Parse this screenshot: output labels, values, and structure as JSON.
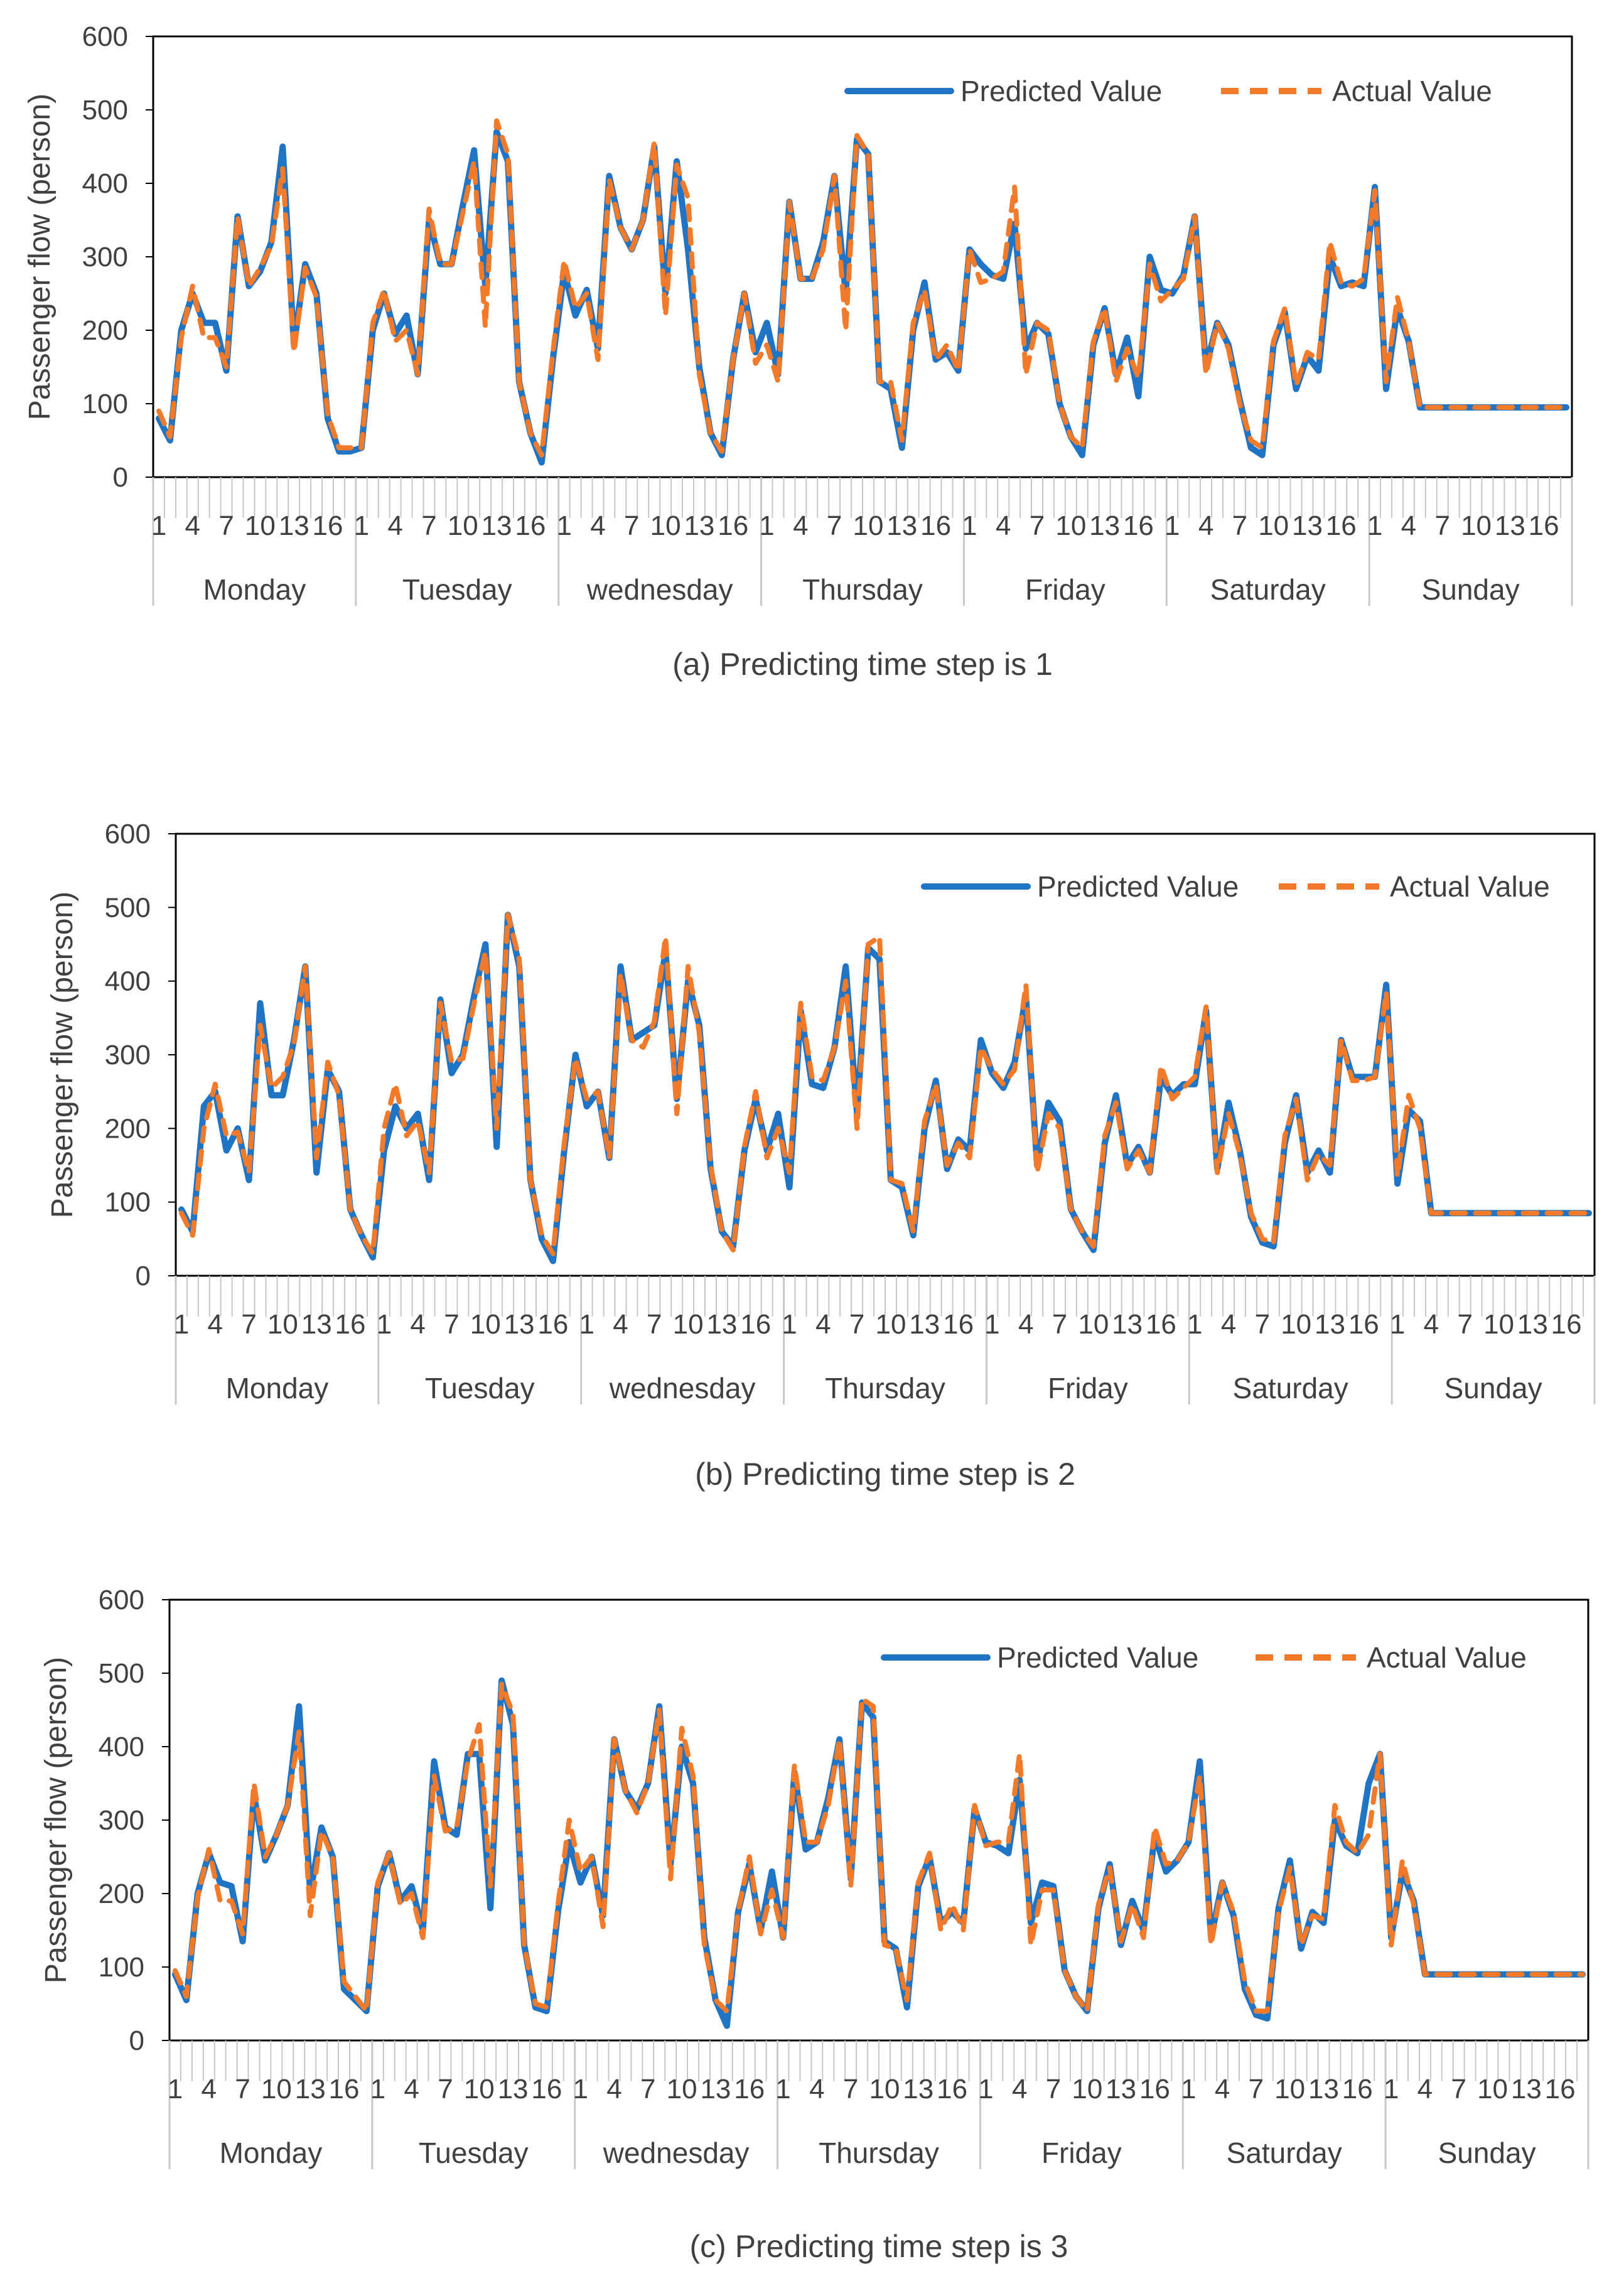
{
  "figure": {
    "x_tick_step": 3,
    "points_per_day": 18
  },
  "chart_data": [
    {
      "type": "line",
      "caption": "(a) Predicting time step is 1",
      "ylabel": "Passenger flow (person)",
      "ylim": [
        0,
        600
      ],
      "yticks": [
        0,
        100,
        200,
        300,
        400,
        500,
        600
      ],
      "days": [
        "Monday",
        "Tuesday",
        "wednesday",
        "Thursday",
        "Friday",
        "Saturday",
        "Sunday"
      ],
      "legend_position": "top-right",
      "grid": false,
      "series": [
        {
          "name": "Predicted Value",
          "color": "#1f74c5",
          "style": "solid",
          "values": [
            80,
            50,
            200,
            250,
            210,
            210,
            145,
            355,
            260,
            280,
            320,
            450,
            180,
            290,
            250,
            80,
            35,
            35,
            40,
            200,
            250,
            195,
            220,
            140,
            350,
            290,
            290,
            370,
            445,
            260,
            470,
            430,
            130,
            60,
            20,
            160,
            280,
            220,
            255,
            175,
            410,
            340,
            310,
            350,
            450,
            250,
            430,
            310,
            150,
            60,
            30,
            160,
            250,
            170,
            210,
            140,
            375,
            270,
            270,
            320,
            410,
            250,
            460,
            440,
            130,
            120,
            40,
            200,
            265,
            160,
            170,
            145,
            310,
            290,
            275,
            270,
            345,
            175,
            210,
            195,
            100,
            55,
            30,
            180,
            230,
            140,
            190,
            110,
            300,
            255,
            250,
            275,
            355,
            150,
            210,
            180,
            105,
            40,
            30,
            180,
            225,
            120,
            165,
            145,
            300,
            260,
            265,
            260,
            395,
            120,
            230,
            185,
            95,
            95,
            95,
            95,
            95,
            95,
            95,
            95,
            95,
            95,
            95,
            95,
            95,
            95
          ]
        },
        {
          "name": "Actual Value",
          "color": "#f27a28",
          "style": "dashed",
          "values": [
            90,
            55,
            190,
            260,
            190,
            190,
            150,
            355,
            260,
            285,
            315,
            420,
            170,
            285,
            245,
            85,
            40,
            40,
            40,
            210,
            255,
            185,
            200,
            140,
            365,
            290,
            290,
            360,
            430,
            205,
            485,
            440,
            130,
            60,
            30,
            170,
            295,
            230,
            250,
            160,
            405,
            340,
            310,
            350,
            455,
            220,
            425,
            380,
            140,
            60,
            35,
            160,
            250,
            155,
            180,
            130,
            375,
            270,
            270,
            310,
            410,
            200,
            465,
            440,
            130,
            130,
            50,
            210,
            255,
            160,
            180,
            145,
            310,
            265,
            270,
            280,
            395,
            140,
            210,
            200,
            100,
            55,
            40,
            185,
            230,
            130,
            175,
            135,
            290,
            240,
            255,
            270,
            355,
            140,
            210,
            175,
            100,
            50,
            40,
            185,
            230,
            125,
            170,
            160,
            320,
            265,
            260,
            270,
            390,
            130,
            245,
            185,
            95,
            95,
            95,
            95,
            95,
            95,
            95,
            95,
            95,
            95,
            95,
            95,
            95,
            95
          ]
        }
      ]
    },
    {
      "type": "line",
      "caption": "(b) Predicting time step is 2",
      "ylabel": "Passenger flow (person)",
      "ylim": [
        0,
        600
      ],
      "yticks": [
        0,
        100,
        200,
        300,
        400,
        500,
        600
      ],
      "days": [
        "Monday",
        "Tuesday",
        "wednesday",
        "Thursday",
        "Friday",
        "Saturday",
        "Sunday"
      ],
      "legend_position": "top-right",
      "grid": false,
      "series": [
        {
          "name": "Predicted Value",
          "color": "#1f74c5",
          "style": "solid",
          "values": [
            90,
            60,
            230,
            250,
            170,
            200,
            130,
            370,
            245,
            245,
            320,
            420,
            140,
            280,
            250,
            90,
            55,
            25,
            170,
            230,
            200,
            220,
            130,
            375,
            275,
            300,
            380,
            450,
            175,
            490,
            420,
            130,
            50,
            20,
            170,
            300,
            230,
            250,
            160,
            420,
            320,
            330,
            340,
            440,
            240,
            400,
            340,
            145,
            60,
            40,
            170,
            240,
            170,
            220,
            120,
            360,
            260,
            255,
            310,
            420,
            220,
            445,
            430,
            130,
            120,
            55,
            200,
            265,
            145,
            185,
            170,
            320,
            275,
            255,
            290,
            380,
            150,
            235,
            210,
            90,
            60,
            35,
            180,
            245,
            150,
            175,
            140,
            270,
            245,
            260,
            260,
            360,
            145,
            235,
            170,
            80,
            45,
            40,
            180,
            245,
            140,
            170,
            140,
            320,
            270,
            270,
            270,
            395,
            125,
            225,
            210,
            85,
            85,
            85,
            85,
            85,
            85,
            85,
            85,
            85,
            85,
            85,
            85,
            85,
            85,
            85
          ]
        },
        {
          "name": "Actual Value",
          "color": "#f27a28",
          "style": "dashed",
          "values": [
            85,
            55,
            200,
            260,
            190,
            195,
            140,
            340,
            255,
            270,
            315,
            420,
            160,
            290,
            245,
            90,
            55,
            30,
            200,
            260,
            190,
            210,
            140,
            370,
            290,
            295,
            370,
            440,
            200,
            490,
            430,
            130,
            55,
            30,
            180,
            295,
            240,
            250,
            160,
            410,
            320,
            310,
            345,
            460,
            220,
            420,
            330,
            150,
            60,
            35,
            175,
            250,
            160,
            200,
            140,
            370,
            270,
            265,
            310,
            400,
            200,
            450,
            460,
            130,
            125,
            60,
            210,
            260,
            150,
            180,
            160,
            310,
            280,
            260,
            280,
            395,
            140,
            220,
            200,
            90,
            60,
            40,
            190,
            235,
            145,
            170,
            140,
            285,
            240,
            255,
            270,
            365,
            140,
            220,
            165,
            85,
            50,
            45,
            190,
            240,
            130,
            165,
            150,
            320,
            265,
            265,
            270,
            385,
            135,
            245,
            200,
            85,
            85,
            85,
            85,
            85,
            85,
            85,
            85,
            85,
            85,
            85,
            85,
            85,
            85,
            85
          ]
        }
      ]
    },
    {
      "type": "line",
      "caption": "(c) Predicting time step is 3",
      "ylabel": "Passenger flow (person)",
      "ylim": [
        0,
        600
      ],
      "yticks": [
        0,
        100,
        200,
        300,
        400,
        500,
        600
      ],
      "days": [
        "Monday",
        "Tuesday",
        "wednesday",
        "Thursday",
        "Friday",
        "Saturday",
        "Sunday"
      ],
      "legend_position": "top-right",
      "grid": false,
      "series": [
        {
          "name": "Predicted Value",
          "color": "#1f74c5",
          "style": "solid",
          "values": [
            90,
            55,
            200,
            255,
            215,
            210,
            135,
            335,
            245,
            280,
            320,
            455,
            200,
            290,
            250,
            70,
            55,
            40,
            210,
            255,
            190,
            210,
            150,
            380,
            290,
            280,
            390,
            390,
            180,
            490,
            430,
            130,
            45,
            40,
            175,
            270,
            215,
            250,
            170,
            410,
            340,
            315,
            350,
            455,
            240,
            400,
            350,
            140,
            55,
            20,
            175,
            240,
            150,
            230,
            140,
            365,
            260,
            270,
            330,
            410,
            220,
            460,
            440,
            135,
            125,
            45,
            210,
            250,
            160,
            175,
            160,
            315,
            270,
            265,
            255,
            355,
            160,
            215,
            210,
            95,
            60,
            40,
            180,
            240,
            130,
            190,
            150,
            280,
            230,
            245,
            270,
            380,
            140,
            215,
            170,
            70,
            35,
            30,
            180,
            245,
            125,
            175,
            160,
            300,
            265,
            255,
            350,
            390,
            140,
            230,
            190,
            90,
            90,
            90,
            90,
            90,
            90,
            90,
            90,
            90,
            90,
            90,
            90,
            90,
            90,
            90
          ]
        },
        {
          "name": "Actual Value",
          "color": "#f27a28",
          "style": "dashed",
          "values": [
            95,
            60,
            195,
            260,
            190,
            190,
            145,
            350,
            250,
            280,
            320,
            420,
            170,
            285,
            250,
            80,
            60,
            40,
            215,
            255,
            185,
            200,
            140,
            360,
            285,
            290,
            380,
            430,
            210,
            485,
            445,
            130,
            50,
            45,
            185,
            300,
            230,
            250,
            155,
            410,
            340,
            310,
            350,
            450,
            220,
            425,
            360,
            130,
            55,
            40,
            175,
            250,
            145,
            205,
            140,
            375,
            270,
            270,
            320,
            410,
            210,
            465,
            455,
            130,
            125,
            55,
            215,
            255,
            150,
            185,
            150,
            320,
            265,
            270,
            270,
            390,
            130,
            205,
            205,
            95,
            60,
            40,
            185,
            235,
            135,
            185,
            140,
            290,
            240,
            245,
            270,
            360,
            130,
            215,
            175,
            80,
            40,
            40,
            175,
            235,
            130,
            170,
            165,
            320,
            270,
            255,
            280,
            390,
            130,
            245,
            185,
            90,
            90,
            90,
            90,
            90,
            90,
            90,
            90,
            90,
            90,
            90,
            90,
            90,
            90,
            90
          ]
        }
      ]
    }
  ]
}
